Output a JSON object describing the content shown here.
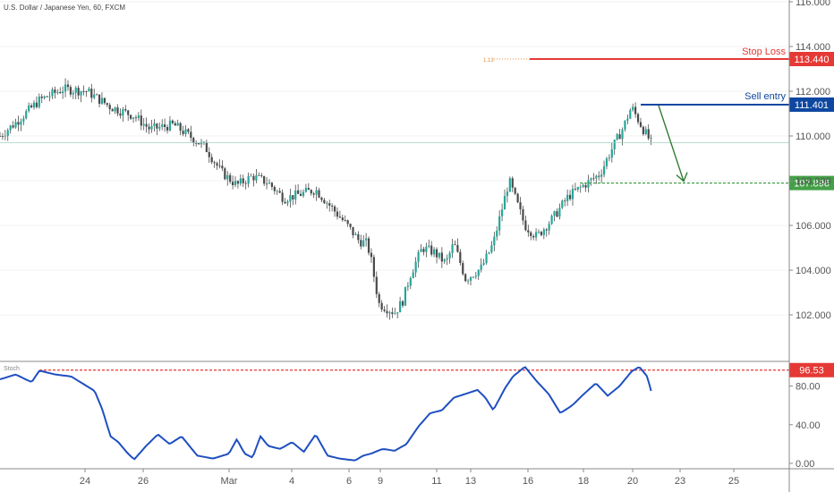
{
  "header": {
    "symbol_title": "U.S. Dollar / Japanese Yen, 60, FXCM"
  },
  "indicator": {
    "label": "Stoch"
  },
  "colors": {
    "up": "#26a69a",
    "down": "#4a4a4a",
    "wick": "#333333",
    "stop": "#e53935",
    "entry": "#0d47a1",
    "target": "#43a047",
    "stoch": "#1e4fc0",
    "axis_text": "#555555",
    "grid": "#e6e6e6",
    "current": "#9ccfc4"
  },
  "chart_data": [
    {
      "type": "candlestick",
      "title": "U.S. Dollar / Japanese Yen, 60, FXCM",
      "ylim": [
        100,
        116
      ],
      "yticks": [
        "116.000",
        "114.000",
        "112.000",
        "110.000",
        "108.000",
        "106.000",
        "104.000",
        "102.000"
      ],
      "x_ticks": [
        "24",
        "26",
        "Mar",
        "4",
        "6",
        "9",
        "11",
        "13",
        "16",
        "18",
        "20",
        "23",
        "25"
      ],
      "price_path": [
        [
          0,
          110.0
        ],
        [
          0.02,
          110.6
        ],
        [
          0.05,
          111.6
        ],
        [
          0.08,
          112.1
        ],
        [
          0.11,
          112.0
        ],
        [
          0.14,
          111.3
        ],
        [
          0.17,
          110.9
        ],
        [
          0.19,
          110.3
        ],
        [
          0.22,
          110.5
        ],
        [
          0.24,
          110.0
        ],
        [
          0.26,
          109.5
        ],
        [
          0.28,
          108.4
        ],
        [
          0.3,
          107.8
        ],
        [
          0.32,
          108.2
        ],
        [
          0.34,
          107.9
        ],
        [
          0.36,
          107.2
        ],
        [
          0.38,
          107.4
        ],
        [
          0.4,
          107.6
        ],
        [
          0.42,
          106.8
        ],
        [
          0.44,
          106.0
        ],
        [
          0.455,
          105.3
        ],
        [
          0.465,
          105.2
        ],
        [
          0.47,
          104.5
        ],
        [
          0.48,
          102.5
        ],
        [
          0.5,
          102.1
        ],
        [
          0.51,
          102.6
        ],
        [
          0.52,
          103.8
        ],
        [
          0.535,
          105.0
        ],
        [
          0.55,
          104.8
        ],
        [
          0.565,
          104.3
        ],
        [
          0.575,
          105.2
        ],
        [
          0.59,
          103.6
        ],
        [
          0.61,
          104.1
        ],
        [
          0.625,
          105.2
        ],
        [
          0.635,
          106.6
        ],
        [
          0.645,
          108.0
        ],
        [
          0.655,
          107.0
        ],
        [
          0.665,
          106.0
        ],
        [
          0.68,
          105.5
        ],
        [
          0.7,
          106.3
        ],
        [
          0.72,
          107.3
        ],
        [
          0.74,
          107.8
        ],
        [
          0.76,
          108.3
        ],
        [
          0.775,
          109.4
        ],
        [
          0.79,
          110.4
        ],
        [
          0.8,
          111.3
        ],
        [
          0.815,
          110.3
        ],
        [
          0.825,
          109.7
        ]
      ],
      "annotations": {
        "stop_loss": {
          "label": "Stop Loss",
          "value": "113.440",
          "fib": "1.13"
        },
        "sell_entry": {
          "label": "Sell entry",
          "value": "111.401"
        },
        "target": {
          "value": "107.896"
        },
        "current_price": 109.7
      }
    },
    {
      "type": "line",
      "name": "Stoch",
      "ylim": [
        0,
        100
      ],
      "yticks": [
        "80.00",
        "40.00",
        "0.00"
      ],
      "threshold": {
        "value": "96.53"
      },
      "path": [
        [
          0,
          87
        ],
        [
          0.02,
          92
        ],
        [
          0.04,
          84
        ],
        [
          0.05,
          96
        ],
        [
          0.07,
          92
        ],
        [
          0.09,
          90
        ],
        [
          0.11,
          80
        ],
        [
          0.12,
          75
        ],
        [
          0.13,
          55
        ],
        [
          0.14,
          28
        ],
        [
          0.15,
          22
        ],
        [
          0.16,
          12
        ],
        [
          0.17,
          4
        ],
        [
          0.185,
          18
        ],
        [
          0.2,
          30
        ],
        [
          0.215,
          20
        ],
        [
          0.23,
          28
        ],
        [
          0.25,
          8
        ],
        [
          0.27,
          5
        ],
        [
          0.29,
          10
        ],
        [
          0.3,
          25
        ],
        [
          0.31,
          10
        ],
        [
          0.32,
          6
        ],
        [
          0.33,
          28
        ],
        [
          0.34,
          18
        ],
        [
          0.355,
          15
        ],
        [
          0.37,
          22
        ],
        [
          0.385,
          12
        ],
        [
          0.4,
          30
        ],
        [
          0.415,
          8
        ],
        [
          0.43,
          5
        ],
        [
          0.45,
          3
        ],
        [
          0.46,
          8
        ],
        [
          0.47,
          10
        ],
        [
          0.485,
          15
        ],
        [
          0.5,
          13
        ],
        [
          0.515,
          20
        ],
        [
          0.53,
          38
        ],
        [
          0.545,
          52
        ],
        [
          0.56,
          55
        ],
        [
          0.575,
          68
        ],
        [
          0.59,
          72
        ],
        [
          0.605,
          76
        ],
        [
          0.615,
          68
        ],
        [
          0.625,
          55
        ],
        [
          0.64,
          78
        ],
        [
          0.65,
          90
        ],
        [
          0.665,
          100
        ],
        [
          0.68,
          85
        ],
        [
          0.695,
          72
        ],
        [
          0.71,
          52
        ],
        [
          0.725,
          60
        ],
        [
          0.74,
          72
        ],
        [
          0.755,
          83
        ],
        [
          0.77,
          70
        ],
        [
          0.785,
          80
        ],
        [
          0.8,
          95
        ],
        [
          0.81,
          100
        ],
        [
          0.82,
          90
        ],
        [
          0.825,
          75
        ]
      ]
    }
  ]
}
